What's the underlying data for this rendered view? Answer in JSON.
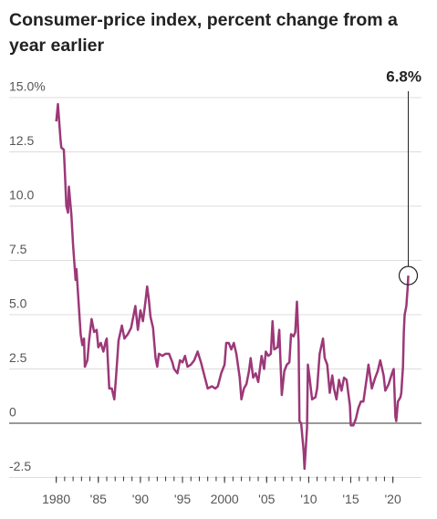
{
  "chart_data": {
    "type": "line",
    "title": "Consumer-price index, percent change from a year earlier",
    "x": [
      1980.0,
      1980.2,
      1980.5,
      1980.6,
      1980.9,
      1981.0,
      1981.2,
      1981.4,
      1981.5,
      1981.8,
      1982.0,
      1982.3,
      1982.4,
      1982.6,
      1982.9,
      1983.1,
      1983.3,
      1983.4,
      1983.7,
      1983.9,
      1984.2,
      1984.5,
      1984.8,
      1985.0,
      1985.3,
      1985.6,
      1985.9,
      1986.0,
      1986.3,
      1986.6,
      1986.9,
      1987.1,
      1987.4,
      1987.8,
      1988.1,
      1988.5,
      1988.9,
      1989.2,
      1989.4,
      1989.7,
      1990.0,
      1990.3,
      1990.6,
      1990.8,
      1991.0,
      1991.2,
      1991.5,
      1991.8,
      1992.0,
      1992.2,
      1992.6,
      1993.0,
      1993.4,
      1993.8,
      1994.0,
      1994.4,
      1994.7,
      1995.0,
      1995.3,
      1995.6,
      1996.0,
      1996.4,
      1996.8,
      1997.2,
      1997.6,
      1998.0,
      1998.5,
      1998.9,
      1999.2,
      1999.6,
      2000.0,
      2000.2,
      2000.5,
      2000.8,
      2001.1,
      2001.4,
      2001.8,
      2002.0,
      2002.3,
      2002.6,
      2002.9,
      2003.1,
      2003.4,
      2003.7,
      2004.0,
      2004.4,
      2004.7,
      2004.9,
      2005.2,
      2005.5,
      2005.7,
      2005.9,
      2006.3,
      2006.5,
      2006.8,
      2007.1,
      2007.4,
      2007.7,
      2007.9,
      2008.2,
      2008.4,
      2008.6,
      2008.8,
      2008.9,
      2009.1,
      2009.4,
      2009.5,
      2009.8,
      2009.9,
      2010.1,
      2010.4,
      2010.8,
      2011.0,
      2011.3,
      2011.7,
      2011.9,
      2012.2,
      2012.5,
      2012.8,
      2013.0,
      2013.3,
      2013.6,
      2013.9,
      2014.2,
      2014.5,
      2014.9,
      2015.0,
      2015.3,
      2015.6,
      2015.9,
      2016.2,
      2016.5,
      2016.9,
      2017.1,
      2017.5,
      2017.9,
      2018.2,
      2018.5,
      2018.9,
      2019.1,
      2019.5,
      2019.9,
      2020.1,
      2020.3,
      2020.4,
      2020.6,
      2020.9,
      2021.0,
      2021.2,
      2021.3,
      2021.4,
      2021.6,
      2021.75,
      2021.83
    ],
    "values": [
      13.9,
      14.7,
      13.1,
      12.7,
      12.6,
      11.8,
      10.0,
      9.7,
      10.9,
      9.6,
      8.2,
      6.6,
      7.1,
      5.9,
      4.1,
      3.6,
      3.9,
      2.6,
      2.9,
      3.8,
      4.8,
      4.2,
      4.3,
      3.5,
      3.7,
      3.3,
      3.8,
      3.9,
      1.6,
      1.6,
      1.1,
      2.1,
      3.8,
      4.5,
      3.9,
      4.1,
      4.4,
      5.0,
      5.4,
      4.3,
      5.2,
      4.7,
      5.6,
      6.3,
      5.7,
      4.9,
      4.4,
      3.0,
      2.6,
      3.2,
      3.1,
      3.2,
      3.2,
      2.8,
      2.5,
      2.3,
      2.9,
      2.8,
      3.1,
      2.6,
      2.7,
      2.9,
      3.3,
      2.8,
      2.2,
      1.6,
      1.7,
      1.6,
      1.7,
      2.3,
      2.7,
      3.7,
      3.7,
      3.4,
      3.7,
      3.2,
      2.1,
      1.1,
      1.6,
      1.8,
      2.4,
      3.0,
      2.1,
      2.3,
      1.9,
      3.1,
      2.5,
      3.3,
      3.1,
      3.2,
      4.7,
      3.4,
      3.5,
      4.3,
      1.3,
      2.4,
      2.7,
      2.8,
      4.1,
      4.0,
      4.2,
      5.6,
      3.7,
      0.1,
      0.0,
      -1.3,
      -2.1,
      -0.2,
      2.7,
      2.1,
      1.1,
      1.2,
      1.6,
      3.2,
      3.9,
      3.0,
      2.7,
      1.4,
      2.2,
      1.6,
      1.1,
      2.0,
      1.5,
      2.1,
      2.0,
      0.8,
      -0.1,
      -0.1,
      0.2,
      0.7,
      1.0,
      1.0,
      2.1,
      2.7,
      1.6,
      2.1,
      2.4,
      2.9,
      2.2,
      1.5,
      1.8,
      2.3,
      2.5,
      0.3,
      0.1,
      1.0,
      1.2,
      1.4,
      2.6,
      4.2,
      5.0,
      5.4,
      6.2,
      6.8
    ],
    "color": "#9c3878",
    "annotation": {
      "x": 2021.83,
      "value": 6.8,
      "label": "6.8%"
    },
    "xlim": [
      1974.4,
      2023.4
    ],
    "xticks": [
      {
        "value": 1980,
        "label": "1980"
      },
      {
        "value": 1985,
        "label": "'85"
      },
      {
        "value": 1990,
        "label": "'90"
      },
      {
        "value": 1995,
        "label": "'95"
      },
      {
        "value": 2000,
        "label": "2000"
      },
      {
        "value": 2005,
        "label": "'05"
      },
      {
        "value": 2010,
        "label": "'10"
      },
      {
        "value": 2015,
        "label": "'15"
      },
      {
        "value": 2020,
        "label": "'20"
      }
    ],
    "x_minor_tick_step": 1,
    "ylim": [
      -2.5,
      15
    ],
    "yticks": [
      -2.5,
      0,
      2.5,
      {
        "value": 5,
        "label": "5.0"
      },
      7.5,
      {
        "value": 10,
        "label": "10.0"
      },
      12.5,
      {
        "value": 15,
        "label": "15.0%"
      }
    ],
    "grid": true
  }
}
